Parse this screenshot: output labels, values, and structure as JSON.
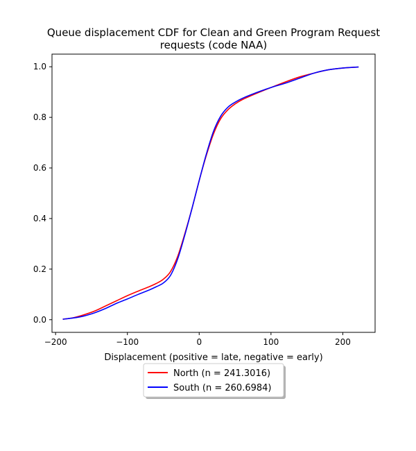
{
  "chart_data": {
    "type": "line",
    "title_line1": "Queue displacement CDF for Clean and Green Program Request",
    "title_line2": "requests (code NAA)",
    "xlabel": "Displacement (positive = late, negative = early)",
    "ylabel": "",
    "xlim": [
      -205,
      245
    ],
    "ylim": [
      -0.05,
      1.05
    ],
    "xticks": [
      -200,
      -100,
      0,
      100,
      200
    ],
    "xtick_labels": [
      "−200",
      "−100",
      "0",
      "100",
      "200"
    ],
    "yticks": [
      0.0,
      0.2,
      0.4,
      0.6,
      0.8,
      1.0
    ],
    "ytick_labels": [
      "0.0",
      "0.2",
      "0.4",
      "0.6",
      "0.8",
      "1.0"
    ],
    "grid": false,
    "legend_position": "below",
    "series": [
      {
        "name": "North (n = 241.3016)",
        "color": "#ff0000",
        "x": [
          -190,
          -175,
          -160,
          -145,
          -130,
          -115,
          -100,
          -85,
          -70,
          -60,
          -50,
          -40,
          -30,
          -20,
          -10,
          0,
          10,
          20,
          30,
          40,
          50,
          60,
          80,
          100,
          120,
          140,
          160,
          180,
          200,
          222
        ],
        "y": [
          0.002,
          0.008,
          0.02,
          0.035,
          0.055,
          0.075,
          0.095,
          0.113,
          0.13,
          0.143,
          0.16,
          0.19,
          0.25,
          0.34,
          0.44,
          0.55,
          0.65,
          0.735,
          0.795,
          0.83,
          0.853,
          0.87,
          0.895,
          0.918,
          0.94,
          0.96,
          0.975,
          0.988,
          0.995,
          0.999
        ]
      },
      {
        "name": "South (n = 260.6984)",
        "color": "#0000ff",
        "x": [
          -190,
          -175,
          -160,
          -145,
          -130,
          -115,
          -100,
          -85,
          -70,
          -60,
          -50,
          -40,
          -30,
          -20,
          -10,
          0,
          10,
          20,
          30,
          40,
          50,
          60,
          80,
          100,
          120,
          140,
          160,
          180,
          200,
          222
        ],
        "y": [
          0.002,
          0.007,
          0.015,
          0.028,
          0.045,
          0.065,
          0.082,
          0.1,
          0.117,
          0.13,
          0.145,
          0.175,
          0.24,
          0.335,
          0.44,
          0.55,
          0.655,
          0.745,
          0.805,
          0.84,
          0.86,
          0.875,
          0.898,
          0.918,
          0.935,
          0.955,
          0.975,
          0.988,
          0.995,
          0.999
        ]
      }
    ]
  }
}
